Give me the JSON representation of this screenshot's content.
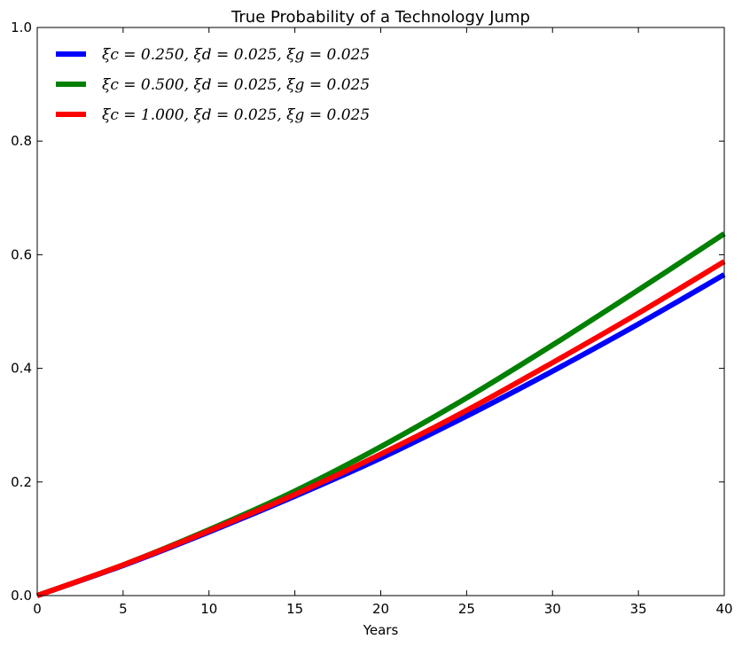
{
  "chart_data": {
    "type": "line",
    "title": "True Probability of a Technology Jump",
    "xlabel": "Years",
    "ylabel": "",
    "xlim": [
      0,
      40
    ],
    "ylim": [
      0,
      1.0
    ],
    "x_ticks": [
      "0",
      "5",
      "10",
      "15",
      "20",
      "25",
      "30",
      "35",
      "40"
    ],
    "y_ticks": [
      "0.0",
      "0.2",
      "0.4",
      "0.6",
      "0.8",
      "1.0"
    ],
    "grid": false,
    "legend_position": "top-left",
    "x": [
      0,
      5,
      10,
      15,
      20,
      25,
      30,
      35,
      40
    ],
    "series": [
      {
        "name": "ξc = 0.250, ξd = 0.025, ξg = 0.025",
        "color": "#0000ff",
        "values": [
          0.0,
          0.053,
          0.112,
          0.175,
          0.242,
          0.316,
          0.395,
          0.478,
          0.565
        ]
      },
      {
        "name": "ξc = 0.500, ξd = 0.025, ξg = 0.025",
        "color": "#008000",
        "values": [
          0.0,
          0.054,
          0.116,
          0.184,
          0.262,
          0.348,
          0.441,
          0.538,
          0.637
        ]
      },
      {
        "name": "ξc = 1.000, ξd = 0.025, ξg = 0.025",
        "color": "#ff0000",
        "values": [
          0.0,
          0.054,
          0.114,
          0.178,
          0.249,
          0.326,
          0.41,
          0.497,
          0.588
        ]
      }
    ]
  }
}
